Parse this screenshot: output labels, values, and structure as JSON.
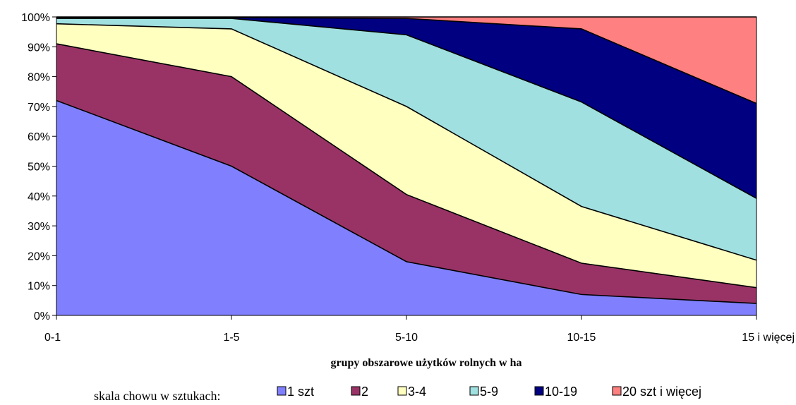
{
  "chart_data": {
    "type": "area",
    "stacked": true,
    "normalized_percent": true,
    "categories": [
      "0-1",
      "1-5",
      "5-10",
      "10-15",
      "15 i więcej"
    ],
    "xlabel": "grupy obszarowe użytków rolnych w ha",
    "ylabel": "",
    "ylim": [
      0,
      100
    ],
    "yticks": [
      "0%",
      "10%",
      "20%",
      "30%",
      "40%",
      "50%",
      "60%",
      "70%",
      "80%",
      "90%",
      "100%"
    ],
    "grid": false,
    "legend": {
      "title": "skala chowu w sztukach:",
      "position": "bottom"
    },
    "series": [
      {
        "name": "1 szt",
        "color": "#8080FF",
        "values": [
          72,
          50,
          18,
          7,
          4
        ]
      },
      {
        "name": "2",
        "color": "#993366",
        "values": [
          19,
          30,
          22.5,
          10.5,
          5.3
        ]
      },
      {
        "name": "3-4",
        "color": "#FFFFC0",
        "values": [
          6.7,
          16,
          29.5,
          19,
          9.2
        ]
      },
      {
        "name": "5-9",
        "color": "#A0E0E0",
        "values": [
          1.8,
          3.5,
          24,
          35,
          20.7
        ]
      },
      {
        "name": "10-19",
        "color": "#000080",
        "values": [
          0.3,
          0.3,
          5.5,
          24.5,
          31.8
        ]
      },
      {
        "name": "20 szt i więcej",
        "color": "#FF8080",
        "values": [
          0.2,
          0.2,
          0.5,
          4,
          29
        ]
      }
    ]
  }
}
